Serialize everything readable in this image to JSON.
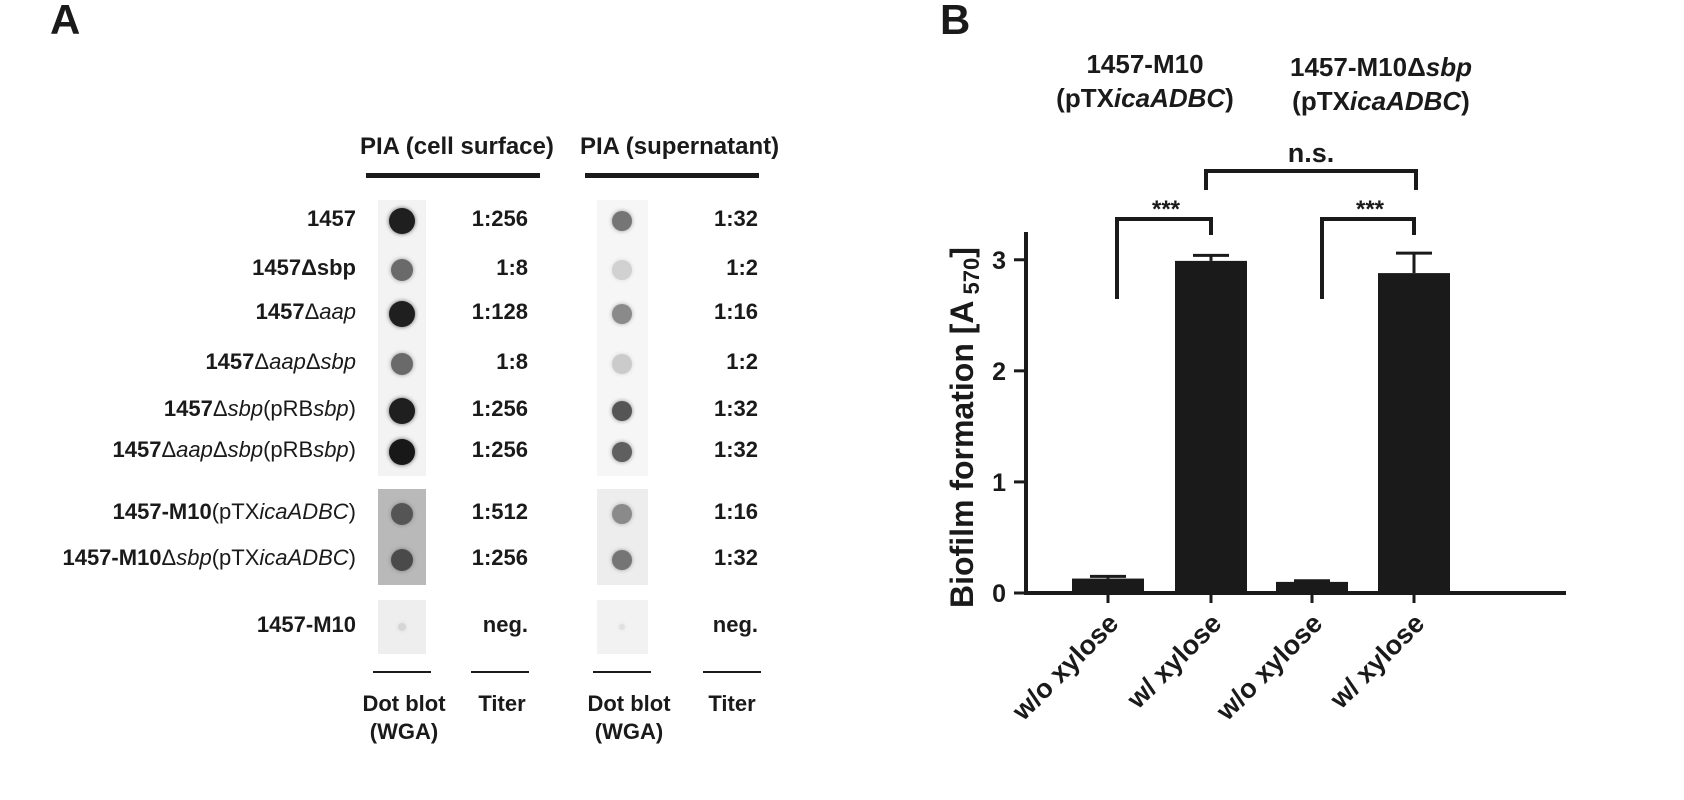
{
  "panel_a": {
    "letter": "A",
    "col_cell": "PIA (cell surface)",
    "col_sup": "PIA (supernatant)",
    "rows": [
      {
        "bold": "1457",
        "rest": [],
        "titer_cell": "1:256",
        "titer_sup": "1:32",
        "cell_level": 0.95,
        "sup_level": 0.55
      },
      {
        "bold": "1457Δsbp",
        "rest": [],
        "titer_cell": "1:8",
        "titer_sup": "1:2",
        "cell_level": 0.6,
        "sup_level": 0.12
      },
      {
        "bold": "1457",
        "rest": [
          {
            "t": "Δ",
            "i": false
          },
          {
            "t": "aap",
            "i": true
          }
        ],
        "titer_cell": "1:128",
        "titer_sup": "1:16",
        "cell_level": 0.95,
        "sup_level": 0.45
      },
      {
        "bold": "1457",
        "rest": [
          {
            "t": "Δ",
            "i": false
          },
          {
            "t": "aap",
            "i": true
          },
          {
            "t": "Δ",
            "i": false
          },
          {
            "t": "sbp",
            "i": true
          }
        ],
        "titer_cell": "1:8",
        "titer_sup": "1:2",
        "cell_level": 0.6,
        "sup_level": 0.15
      },
      {
        "bold": "1457",
        "rest": [
          {
            "t": "Δ",
            "i": false
          },
          {
            "t": "sbp",
            "i": true
          },
          {
            "t": "(pRB",
            "i": false
          },
          {
            "t": "sbp",
            "i": true
          },
          {
            "t": ")",
            "i": false
          }
        ],
        "titer_cell": "1:256",
        "titer_sup": "1:32",
        "cell_level": 0.95,
        "sup_level": 0.7
      },
      {
        "bold": "1457",
        "rest": [
          {
            "t": "Δ",
            "i": false
          },
          {
            "t": "aap",
            "i": true
          },
          {
            "t": "Δ",
            "i": false
          },
          {
            "t": "sbp",
            "i": true
          },
          {
            "t": "(pRB",
            "i": false
          },
          {
            "t": "sbp",
            "i": true
          },
          {
            "t": ")",
            "i": false
          }
        ],
        "titer_cell": "1:256",
        "titer_sup": "1:32",
        "cell_level": 0.98,
        "sup_level": 0.65
      },
      {
        "bold": "1457-M10",
        "rest": [
          {
            "t": "(pTX",
            "i": false
          },
          {
            "t": "icaADBC",
            "i": true
          },
          {
            "t": ")",
            "i": false
          }
        ],
        "titer_cell": "1:512",
        "titer_sup": "1:16",
        "cell_level": 0.7,
        "sup_level": 0.45
      },
      {
        "bold": "1457-M10",
        "rest": [
          {
            "t": "Δ",
            "i": false
          },
          {
            "t": "sbp",
            "i": true
          },
          {
            "t": "(pTX",
            "i": false
          },
          {
            "t": "icaADBC",
            "i": true
          },
          {
            "t": ")",
            "i": false
          }
        ],
        "titer_cell": "1:256",
        "titer_sup": "1:32",
        "cell_level": 0.75,
        "sup_level": 0.55
      },
      {
        "bold": "1457-M10",
        "rest": [],
        "titer_cell": "neg.",
        "titer_sup": "neg.",
        "cell_level": 0.1,
        "sup_level": 0.05
      }
    ],
    "foot_dot_line1": "Dot blot",
    "foot_dot_line2": "(WGA)",
    "foot_titer": "Titer"
  },
  "panel_b": {
    "letter": "B",
    "strain1_line1": "1457-M10",
    "strain1_line2_pre": "(pTX",
    "strain1_line2_ital": "icaADBC",
    "strain1_line2_post": ")",
    "strain2_line1_pre": "1457-M10Δ",
    "strain2_line1_ital": "sbp",
    "strain2_line2_pre": "(pTX",
    "strain2_line2_ital": "icaADBC",
    "strain2_line2_post": ")",
    "sig_top": "n.s.",
    "sig_left": "***",
    "sig_right": "***"
  },
  "chart_data": {
    "type": "bar",
    "ylabel": "Biofilm formation [A",
    "ylabel_sub": "570",
    "ylabel_close": "]",
    "ylim": [
      0,
      3.25
    ],
    "yticks": [
      "0",
      "1",
      "2",
      "3"
    ],
    "categories": [
      "w/o xylose",
      "w/ xylose",
      "w/o xylose",
      "w/ xylose"
    ],
    "values": [
      0.13,
      2.99,
      0.1,
      2.88
    ],
    "errors": [
      0.02,
      0.05,
      0.01,
      0.18
    ],
    "bar_color": "#1a1a1a"
  }
}
